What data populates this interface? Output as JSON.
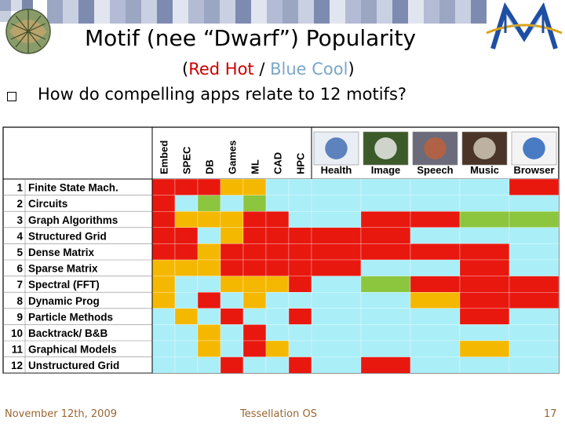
{
  "slide": {
    "title": "Motif (nee “Dwarf”) Popularity",
    "subtitle_open": "(",
    "subtitle_hot": "Red Hot",
    "subtitle_sep": " / ",
    "subtitle_cool": "Blue Cool",
    "subtitle_close": ")",
    "bullet": "How do compelling apps relate to 12 motifs?",
    "footer_date": "November 12th, 2009",
    "footer_center": "Tessellation OS",
    "page_number": "17"
  },
  "colors": {
    "hot": "#e8180f",
    "warm": "#f5b800",
    "medium": "#8cc63f",
    "cool": "#aaeef8"
  },
  "matrix": {
    "domains": [
      "Embed",
      "SPEC",
      "DB",
      "Games",
      "ML",
      "CAD",
      "HPC"
    ],
    "apps": [
      "Health",
      "Image",
      "Speech",
      "Music",
      "Browser"
    ],
    "motifs": [
      {
        "num": "1",
        "name": "Finite State Mach."
      },
      {
        "num": "2",
        "name": "Circuits"
      },
      {
        "num": "3",
        "name": "Graph Algorithms"
      },
      {
        "num": "4",
        "name": "Structured Grid"
      },
      {
        "num": "5",
        "name": "Dense Matrix"
      },
      {
        "num": "6",
        "name": "Sparse Matrix"
      },
      {
        "num": "7",
        "name": "Spectral (FFT)"
      },
      {
        "num": "8",
        "name": "Dynamic Prog"
      },
      {
        "num": "9",
        "name": "Particle Methods"
      },
      {
        "num": "10",
        "name": "Backtrack/ B&B"
      },
      {
        "num": "11",
        "name": "Graphical Models"
      },
      {
        "num": "12",
        "name": "Unstructured Grid"
      }
    ],
    "domain_cells": [
      [
        "hot",
        "hot",
        "hot",
        "warm",
        "warm",
        "cool",
        "cool"
      ],
      [
        "hot",
        "cool",
        "medium",
        "cool",
        "medium",
        "cool",
        "cool"
      ],
      [
        "hot",
        "warm",
        "warm",
        "warm",
        "hot",
        "hot",
        "cool"
      ],
      [
        "hot",
        "hot",
        "cool",
        "warm",
        "hot",
        "hot",
        "hot"
      ],
      [
        "hot",
        "hot",
        "warm",
        "hot",
        "hot",
        "hot",
        "hot"
      ],
      [
        "warm",
        "warm",
        "warm",
        "hot",
        "hot",
        "hot",
        "hot"
      ],
      [
        "warm",
        "cool",
        "cool",
        "warm",
        "warm",
        "warm",
        "hot"
      ],
      [
        "warm",
        "cool",
        "hot",
        "cool",
        "warm",
        "cool",
        "cool"
      ],
      [
        "cool",
        "warm",
        "cool",
        "hot",
        "cool",
        "cool",
        "hot"
      ],
      [
        "cool",
        "cool",
        "warm",
        "cool",
        "hot",
        "cool",
        "cool"
      ],
      [
        "cool",
        "cool",
        "warm",
        "cool",
        "hot",
        "warm",
        "cool"
      ],
      [
        "cool",
        "cool",
        "cool",
        "hot",
        "cool",
        "cool",
        "hot"
      ]
    ],
    "app_cells": [
      [
        "cool",
        "cool",
        "cool",
        "cool",
        "hot"
      ],
      [
        "cool",
        "cool",
        "cool",
        "cool",
        "cool"
      ],
      [
        "cool",
        "hot",
        "hot",
        "medium",
        "medium"
      ],
      [
        "hot",
        "hot",
        "cool",
        "cool",
        "cool"
      ],
      [
        "hot",
        "hot",
        "hot",
        "hot",
        "cool"
      ],
      [
        "hot",
        "cool",
        "cool",
        "hot",
        "cool"
      ],
      [
        "cool",
        "medium",
        "hot",
        "hot",
        "hot"
      ],
      [
        "cool",
        "cool",
        "warm",
        "hot",
        "hot"
      ],
      [
        "cool",
        "cool",
        "cool",
        "hot",
        "cool"
      ],
      [
        "cool",
        "cool",
        "cool",
        "cool",
        "cool"
      ],
      [
        "cool",
        "cool",
        "cool",
        "warm",
        "cool"
      ],
      [
        "cool",
        "hot",
        "cool",
        "cool",
        "cool"
      ]
    ]
  }
}
